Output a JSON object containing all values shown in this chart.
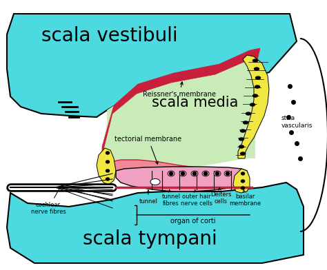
{
  "bg_color": "#ffffff",
  "cyan_color": "#4dd9e0",
  "green_color": "#c8ebb8",
  "yellow_color": "#f0e840",
  "pink_color": "#f0a0c0",
  "dark_red": "#c8203c",
  "salmon_color": "#f08898",
  "black": "#000000",
  "white": "#ffffff",
  "title_scala_vestibuli": "scala vestibuli",
  "title_scala_media": "scala media",
  "title_scala_tympani": "scala tympani",
  "label_reissner": "Reissner's membrane",
  "label_tectorial": "tectorial membrane",
  "label_stria": "stria\nvascularis",
  "label_tunnel": "tunnel",
  "label_tunnel_fibres": "tunnel\nfibres",
  "label_outer_hair": "outer hair\nnerve cells",
  "label_deiters": "Deiters\ncells",
  "label_basilar": "basilar\nmembrane",
  "label_organ": "organ of corti",
  "label_cochlear": "cochlear\nnerve fibres",
  "figsize": [
    4.74,
    3.92
  ],
  "dpi": 100
}
